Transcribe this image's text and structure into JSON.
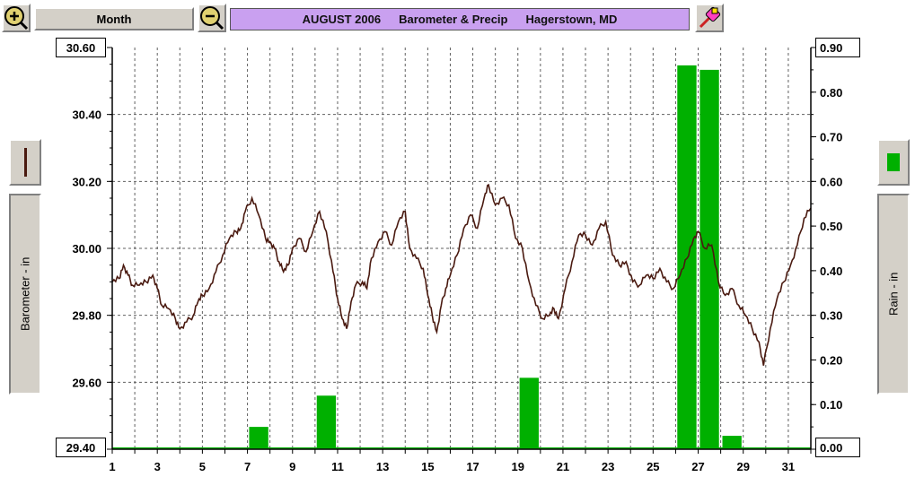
{
  "toolbar": {
    "period_label": "Month",
    "title_parts": [
      "AUGUST 2006",
      "Barometer & Precip",
      "Hagerstown, MD"
    ],
    "zoom_in_icon": "zoom-in-icon",
    "zoom_out_icon": "zoom-out-icon",
    "tool_icon": "eraser-pen-icon"
  },
  "left_axis": {
    "label": "Barometer - in",
    "top_value": "30.60",
    "bottom_value": "29.40",
    "series_color": "#4a1a10"
  },
  "right_axis": {
    "label": "Rain - in",
    "top_value": "0.90",
    "bottom_value": "0.00",
    "series_color": "#00b000"
  },
  "chart_data": {
    "type": "line+bar",
    "title": "AUGUST 2006 Barometer & Precip Hagerstown, MD",
    "xlabel": "",
    "x_ticks": [
      "1",
      "3",
      "5",
      "7",
      "9",
      "11",
      "13",
      "15",
      "17",
      "19",
      "21",
      "23",
      "25",
      "27",
      "29",
      "31"
    ],
    "xlim": [
      1,
      32
    ],
    "left_axis": {
      "label": "Barometer - in",
      "ylim": [
        29.4,
        30.6
      ],
      "ticks": [
        "30.60",
        "30.40",
        "30.20",
        "30.00",
        "29.80",
        "29.60",
        "29.40"
      ]
    },
    "right_axis": {
      "label": "Rain - in",
      "ylim": [
        0.0,
        0.9
      ],
      "ticks": [
        "0.90",
        "0.80",
        "0.70",
        "0.60",
        "0.50",
        "0.40",
        "0.30",
        "0.20",
        "0.10",
        "0.00"
      ]
    },
    "grid": true,
    "series": [
      {
        "name": "Barometer - in",
        "axis": "left",
        "kind": "line",
        "color": "#4a1a10",
        "points": [
          [
            1.0,
            29.9
          ],
          [
            1.3,
            29.91
          ],
          [
            1.5,
            29.95
          ],
          [
            1.7,
            29.92
          ],
          [
            1.9,
            29.89
          ],
          [
            2.2,
            29.89
          ],
          [
            2.5,
            29.9
          ],
          [
            2.8,
            29.92
          ],
          [
            3.0,
            29.88
          ],
          [
            3.2,
            29.83
          ],
          [
            3.5,
            29.82
          ],
          [
            3.8,
            29.79
          ],
          [
            4.0,
            29.76
          ],
          [
            4.3,
            29.78
          ],
          [
            4.6,
            29.8
          ],
          [
            4.8,
            29.84
          ],
          [
            5.0,
            29.86
          ],
          [
            5.3,
            29.88
          ],
          [
            5.6,
            29.93
          ],
          [
            5.9,
            29.98
          ],
          [
            6.2,
            30.03
          ],
          [
            6.5,
            30.05
          ],
          [
            6.7,
            30.06
          ],
          [
            6.9,
            30.11
          ],
          [
            7.2,
            30.15
          ],
          [
            7.5,
            30.1
          ],
          [
            7.8,
            30.03
          ],
          [
            8.0,
            30.02
          ],
          [
            8.2,
            30.0
          ],
          [
            8.4,
            29.96
          ],
          [
            8.6,
            29.93
          ],
          [
            8.8,
            29.95
          ],
          [
            9.0,
            30.0
          ],
          [
            9.3,
            30.03
          ],
          [
            9.6,
            29.99
          ],
          [
            9.9,
            30.05
          ],
          [
            10.2,
            30.11
          ],
          [
            10.5,
            30.05
          ],
          [
            10.8,
            29.93
          ],
          [
            11.0,
            29.85
          ],
          [
            11.2,
            29.79
          ],
          [
            11.4,
            29.76
          ],
          [
            11.6,
            29.84
          ],
          [
            11.8,
            29.89
          ],
          [
            12.1,
            29.9
          ],
          [
            12.3,
            29.88
          ],
          [
            12.5,
            29.97
          ],
          [
            12.8,
            30.02
          ],
          [
            13.1,
            30.05
          ],
          [
            13.4,
            30.01
          ],
          [
            13.7,
            30.08
          ],
          [
            14.0,
            30.11
          ],
          [
            14.2,
            30.0
          ],
          [
            14.5,
            29.97
          ],
          [
            14.8,
            29.94
          ],
          [
            15.0,
            29.86
          ],
          [
            15.2,
            29.8
          ],
          [
            15.4,
            29.75
          ],
          [
            15.6,
            29.83
          ],
          [
            15.8,
            29.88
          ],
          [
            16.0,
            29.92
          ],
          [
            16.3,
            29.98
          ],
          [
            16.6,
            30.06
          ],
          [
            16.9,
            30.1
          ],
          [
            17.2,
            30.06
          ],
          [
            17.5,
            30.15
          ],
          [
            17.7,
            30.19
          ],
          [
            18.0,
            30.13
          ],
          [
            18.3,
            30.15
          ],
          [
            18.6,
            30.13
          ],
          [
            18.9,
            30.03
          ],
          [
            19.2,
            30.0
          ],
          [
            19.5,
            29.9
          ],
          [
            19.8,
            29.83
          ],
          [
            20.1,
            29.79
          ],
          [
            20.4,
            29.8
          ],
          [
            20.6,
            29.82
          ],
          [
            20.8,
            29.79
          ],
          [
            21.1,
            29.88
          ],
          [
            21.4,
            29.96
          ],
          [
            21.7,
            30.04
          ],
          [
            22.0,
            30.04
          ],
          [
            22.3,
            30.01
          ],
          [
            22.6,
            30.06
          ],
          [
            22.9,
            30.08
          ],
          [
            23.2,
            29.98
          ],
          [
            23.5,
            29.95
          ],
          [
            23.8,
            29.96
          ],
          [
            24.1,
            29.9
          ],
          [
            24.4,
            29.89
          ],
          [
            24.7,
            29.92
          ],
          [
            25.0,
            29.91
          ],
          [
            25.3,
            29.94
          ],
          [
            25.6,
            29.9
          ],
          [
            25.9,
            29.88
          ],
          [
            26.2,
            29.92
          ],
          [
            26.5,
            29.97
          ],
          [
            26.8,
            30.03
          ],
          [
            27.0,
            30.05
          ],
          [
            27.3,
            30.0
          ],
          [
            27.6,
            30.01
          ],
          [
            27.9,
            29.9
          ],
          [
            28.2,
            29.86
          ],
          [
            28.5,
            29.88
          ],
          [
            28.8,
            29.83
          ],
          [
            29.1,
            29.8
          ],
          [
            29.4,
            29.76
          ],
          [
            29.7,
            29.72
          ],
          [
            29.9,
            29.65
          ],
          [
            30.2,
            29.76
          ],
          [
            30.5,
            29.85
          ],
          [
            30.8,
            29.9
          ],
          [
            31.1,
            29.95
          ],
          [
            31.4,
            30.01
          ],
          [
            31.7,
            30.09
          ],
          [
            32.0,
            30.12
          ]
        ]
      },
      {
        "name": "Rain - in",
        "axis": "right",
        "kind": "bar",
        "color": "#00b000",
        "bars": [
          [
            7.5,
            0.05
          ],
          [
            10.5,
            0.12
          ],
          [
            19.5,
            0.16
          ],
          [
            26.5,
            0.86
          ],
          [
            27.5,
            0.85
          ],
          [
            28.5,
            0.03
          ]
        ]
      }
    ]
  }
}
